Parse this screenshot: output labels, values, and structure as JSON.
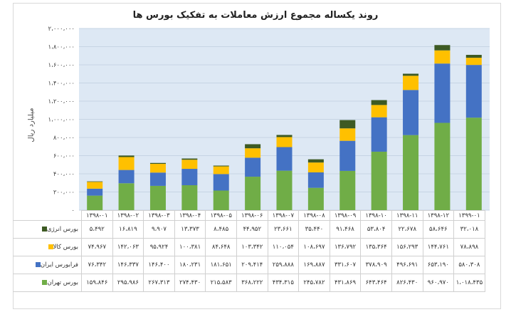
{
  "chart_data": {
    "type": "bar",
    "stacked": true,
    "title": "روند یکساله مجموع ارزش معاملات به تفکیک بورس ها",
    "ylabel": "میلیارد ریال",
    "xlabel": "",
    "ylim": [
      0,
      2000000
    ],
    "yticks": [
      0,
      200000,
      400000,
      600000,
      800000,
      1000000,
      1200000,
      1400000,
      1600000,
      1800000,
      2000000
    ],
    "ytick_labels": [
      "۰",
      "۲۰۰،۰۰۰",
      "۴۰۰،۰۰۰",
      "۶۰۰،۰۰۰",
      "۸۰۰،۰۰۰",
      "۱،۰۰۰،۰۰۰",
      "۱،۲۰۰،۰۰۰",
      "۱،۴۰۰،۰۰۰",
      "۱،۶۰۰،۰۰۰",
      "۱،۸۰۰،۰۰۰",
      "۲،۰۰۰،۰۰۰"
    ],
    "grid": true,
    "legend": "table-left",
    "categories": [
      "۱۳۹۸-۰۱",
      "۱۳۹۸-۰۲",
      "۱۳۹۸-۰۳",
      "۱۳۹۸-۰۴",
      "۱۳۹۸-۰۵",
      "۱۳۹۸-۰۶",
      "۱۳۹۸-۰۷",
      "۱۳۹۸-۰۸",
      "۱۳۹۸-۰۹",
      "۱۳۹۸-۱۰",
      "۱۳۹۸-۱۱",
      "۱۳۹۸-۱۲",
      "۱۳۹۹-۰۱"
    ],
    "series": [
      {
        "name": "بورس تهران",
        "color": "#70ad47",
        "values": [
          159846,
          295986,
          267313,
          274430,
          215583,
          368222,
          434315,
          245782,
          431869,
          643464,
          826430,
          960970,
          1018435
        ]
      },
      {
        "name": "فرابورس ایران",
        "color": "#4472c4",
        "values": [
          76342,
          146337,
          146400,
          180231,
          181651,
          209414,
          259888,
          169887,
          331607,
          378909,
          496691,
          653190,
          580308
        ]
      },
      {
        "name": "بورس کالا",
        "color": "#ffc000",
        "values": [
          74967,
          142063,
          95924,
          100381,
          84648,
          103342,
          110054,
          108697,
          136792,
          135364,
          156293,
          144761,
          78898
        ]
      },
      {
        "name": "بورس انرژی",
        "color": "#3d5a23",
        "values": [
          5492,
          16819,
          9907,
          13373,
          8485,
          44952,
          23661,
          35440,
          91468,
          53804,
          22678,
          58646,
          32018
        ]
      }
    ]
  }
}
